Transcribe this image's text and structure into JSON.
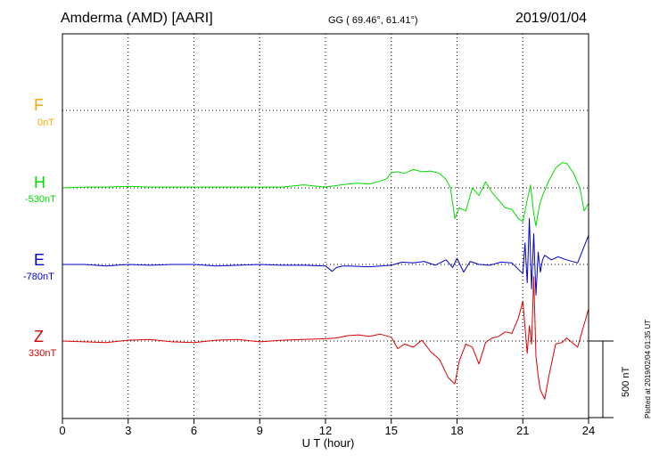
{
  "header": {
    "station": "Amderma (AMD)  [AARI]",
    "coords": "GG ( 69.46°,  61.41°)",
    "date": "2019/01/04"
  },
  "plotted_note": "Plotted at 2019/02/04 01:35 UT",
  "scale_label": "500 nT",
  "chart_data": {
    "type": "line",
    "xlabel": "U T (hour)",
    "xlim": [
      0,
      24
    ],
    "x_ticks": [
      0,
      3,
      6,
      9,
      12,
      15,
      18,
      21,
      24
    ],
    "scale_bar_nT": 500,
    "series": [
      {
        "name": "F",
        "baseline_label": "0nT",
        "color": "#ffa500",
        "x": [],
        "values": []
      },
      {
        "name": "H",
        "baseline_label": "-530nT",
        "color": "#00dd00",
        "x": [
          0,
          1,
          2,
          3,
          4,
          5,
          6,
          7,
          8,
          9,
          10,
          11,
          12,
          12.5,
          13,
          13.5,
          14,
          14.5,
          14.8,
          15,
          15.3,
          15.6,
          16,
          16.4,
          16.8,
          17.2,
          17.5,
          17.7,
          17.9,
          18.1,
          18.4,
          18.7,
          19,
          19.3,
          19.6,
          19.9,
          20.2,
          20.5,
          20.8,
          21,
          21.2,
          21.35,
          21.5,
          21.6,
          21.75,
          21.9,
          22.2,
          22.5,
          22.8,
          23,
          23.3,
          23.6,
          23.8,
          24
        ],
        "values": [
          0,
          5,
          5,
          10,
          5,
          5,
          5,
          5,
          5,
          5,
          5,
          20,
          5,
          15,
          25,
          30,
          25,
          45,
          60,
          100,
          105,
          95,
          120,
          105,
          110,
          95,
          55,
          0,
          -200,
          -130,
          -150,
          0,
          -50,
          40,
          -30,
          -80,
          -130,
          -140,
          -200,
          -220,
          -80,
          20,
          -170,
          -250,
          -120,
          -50,
          50,
          130,
          165,
          160,
          100,
          0,
          -150,
          -100
        ]
      },
      {
        "name": "E",
        "baseline_label": "-780nT",
        "color": "#0000cc",
        "x": [
          0,
          1,
          2,
          3,
          4,
          5,
          6,
          7,
          8,
          9,
          10,
          11,
          12,
          12.3,
          12.5,
          12.8,
          13,
          14,
          15,
          15.5,
          16,
          16.5,
          17,
          17.5,
          17.8,
          18,
          18.3,
          18.6,
          19,
          19.5,
          20,
          20.5,
          21,
          21.1,
          21.2,
          21.3,
          21.4,
          21.5,
          21.6,
          21.7,
          21.8,
          21.9,
          22,
          22.3,
          22.6,
          23,
          23.5,
          24
        ],
        "values": [
          0,
          0,
          -10,
          0,
          -5,
          0,
          0,
          -10,
          -5,
          0,
          -5,
          -5,
          -10,
          -45,
          -20,
          -10,
          -10,
          -15,
          -5,
          15,
          10,
          20,
          -5,
          30,
          -20,
          40,
          -50,
          20,
          0,
          -5,
          15,
          10,
          -60,
          140,
          -120,
          300,
          -160,
          200,
          -200,
          80,
          -50,
          30,
          60,
          30,
          50,
          30,
          10,
          190
        ]
      },
      {
        "name": "Z",
        "baseline_label": "330nT",
        "color": "#dd0000",
        "x": [
          0,
          1,
          2,
          3,
          4,
          5,
          6,
          7,
          8,
          9,
          10,
          11,
          12,
          12.5,
          13,
          13.5,
          14,
          14.5,
          15,
          15.3,
          15.6,
          16,
          16.4,
          16.8,
          17.2,
          17.6,
          17.9,
          18.1,
          18.4,
          18.7,
          19,
          19.3,
          19.6,
          19.9,
          20.2,
          20.5,
          20.8,
          21,
          21.2,
          21.3,
          21.4,
          21.5,
          21.6,
          21.7,
          21.8,
          22,
          22.2,
          22.5,
          22.8,
          23,
          23.5,
          24
        ],
        "values": [
          0,
          -5,
          -10,
          5,
          10,
          -5,
          -10,
          5,
          10,
          -5,
          5,
          10,
          15,
          20,
          35,
          40,
          30,
          45,
          25,
          -50,
          -20,
          -40,
          5,
          -70,
          -120,
          -240,
          -280,
          -130,
          -20,
          -40,
          -150,
          -10,
          20,
          30,
          60,
          50,
          150,
          260,
          -80,
          100,
          -20,
          420,
          -100,
          -230,
          -320,
          -380,
          -220,
          -20,
          -10,
          20,
          -40,
          210
        ]
      }
    ]
  }
}
